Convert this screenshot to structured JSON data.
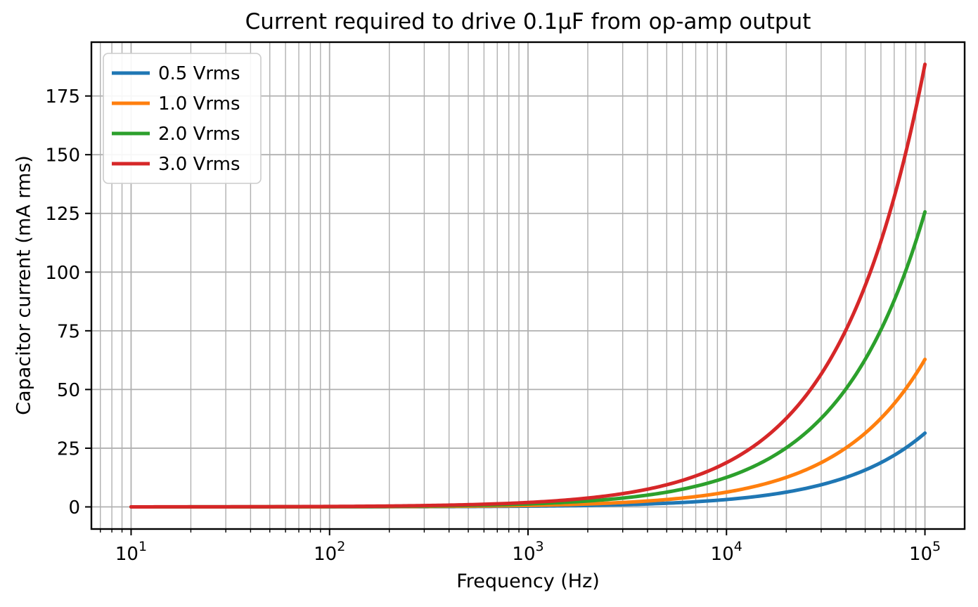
{
  "chart_data": {
    "type": "line",
    "title": "Current required to drive 0.1μF from op-amp output",
    "xlabel": "Frequency (Hz)",
    "ylabel": "Capacitor current (mA rms)",
    "x_scale": "log",
    "xlog_range": [
      0.8,
      5.2
    ],
    "ylim": [
      -9.42,
      197.93
    ],
    "x_major_tick_exponents": [
      1,
      2,
      3,
      4,
      5
    ],
    "x_tick_base": "10",
    "y_ticks": [
      0,
      25,
      50,
      75,
      100,
      125,
      150,
      175
    ],
    "grid": "x-major-and-minor, y-major",
    "grid_color": "#b0b0b0",
    "spine_color": "#000000",
    "legend_position": "upper left",
    "x": [
      10,
      20,
      50,
      100,
      200,
      500,
      1000,
      2000,
      5000,
      10000,
      20000,
      50000,
      100000
    ],
    "series": [
      {
        "name": "0.5 Vrms",
        "color": "#1f77b4",
        "values": [
          0.00314,
          0.00628,
          0.01571,
          0.03142,
          0.06283,
          0.15708,
          0.31416,
          0.62832,
          1.5708,
          3.1416,
          6.2832,
          15.708,
          31.416
        ]
      },
      {
        "name": "1.0 Vrms",
        "color": "#ff7f0e",
        "values": [
          0.00628,
          0.01257,
          0.03142,
          0.06283,
          0.12566,
          0.31416,
          0.62832,
          1.25664,
          3.1416,
          6.2832,
          12.5664,
          31.416,
          62.832
        ]
      },
      {
        "name": "2.0 Vrms",
        "color": "#2ca02c",
        "values": [
          0.01257,
          0.02513,
          0.06283,
          0.12566,
          0.25133,
          0.62832,
          1.25664,
          2.51327,
          6.2832,
          12.5664,
          25.1327,
          62.832,
          125.664
        ]
      },
      {
        "name": "3.0 Vrms",
        "color": "#d62728",
        "values": [
          0.01885,
          0.0377,
          0.09425,
          0.1885,
          0.37699,
          0.94248,
          1.88496,
          3.76991,
          9.42478,
          18.8496,
          37.6991,
          94.2478,
          188.496
        ]
      }
    ]
  }
}
